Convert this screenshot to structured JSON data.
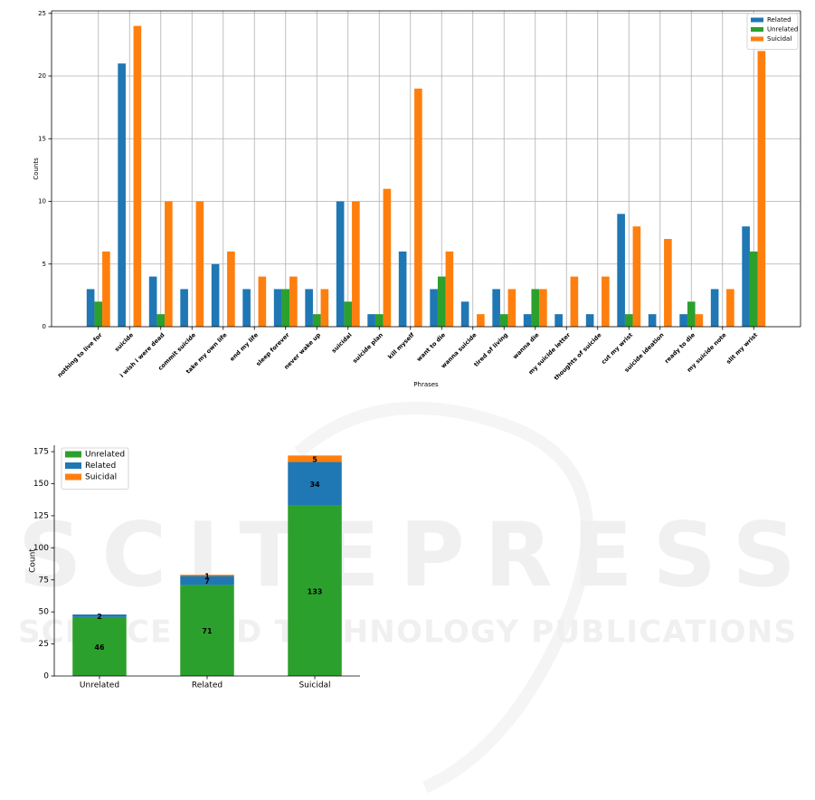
{
  "watermark": {
    "brand": "SCITEPRESS",
    "tagline": "SCIENCE AND TECHNOLOGY PUBLICATIONS"
  },
  "chart_data": [
    {
      "type": "bar",
      "mode": "grouped",
      "xlabel": "Phrases",
      "ylabel": "Counts",
      "categories": [
        "nothing to live for",
        "suicide",
        "i wish i were dead",
        "commit suicide",
        "take my own life",
        "end my life",
        "sleep forever",
        "never wake up",
        "suicidal",
        "suicide plan",
        "kill myself",
        "want to die",
        "wanna suicide",
        "tired of living",
        "wanna die",
        "my suicide letter",
        "thoughts of suicide",
        "cut my wrist",
        "suicide ideation",
        "ready to die",
        "my suicide note",
        "slit my wrist"
      ],
      "series": [
        {
          "name": "Related",
          "color": "#1f77b4",
          "values": [
            3,
            21,
            4,
            3,
            5,
            3,
            3,
            3,
            10,
            1,
            6,
            3,
            2,
            3,
            1,
            1,
            1,
            9,
            1,
            1,
            3,
            8
          ]
        },
        {
          "name": "Unrelated",
          "color": "#2ca02c",
          "values": [
            2,
            0,
            1,
            0,
            0,
            0,
            3,
            1,
            2,
            1,
            0,
            4,
            0,
            1,
            3,
            0,
            0,
            1,
            0,
            2,
            0,
            6
          ]
        },
        {
          "name": "Suicidal",
          "color": "#ff7f0e",
          "values": [
            6,
            24,
            10,
            10,
            6,
            4,
            4,
            3,
            10,
            11,
            19,
            6,
            1,
            3,
            3,
            4,
            4,
            8,
            7,
            1,
            3,
            22
          ]
        }
      ],
      "ylim": [
        0,
        25.2
      ],
      "yticks": [
        0,
        5,
        10,
        15,
        20,
        25
      ],
      "grid": true,
      "legend": "upper right"
    },
    {
      "type": "bar",
      "mode": "stacked",
      "ylabel": "Count",
      "categories": [
        "Unrelated",
        "Related",
        "Suicidal"
      ],
      "series": [
        {
          "name": "Unrelated",
          "color": "#2ca02c",
          "values": [
            46,
            71,
            133
          ]
        },
        {
          "name": "Related",
          "color": "#1f77b4",
          "values": [
            2,
            7,
            34
          ]
        },
        {
          "name": "Suicidal",
          "color": "#ff7f0e",
          "values": [
            0,
            1,
            5
          ]
        }
      ],
      "ylim": [
        0,
        180
      ],
      "yticks": [
        0,
        25,
        50,
        75,
        100,
        125,
        150,
        175
      ],
      "grid": false,
      "legend": "upper left"
    }
  ]
}
